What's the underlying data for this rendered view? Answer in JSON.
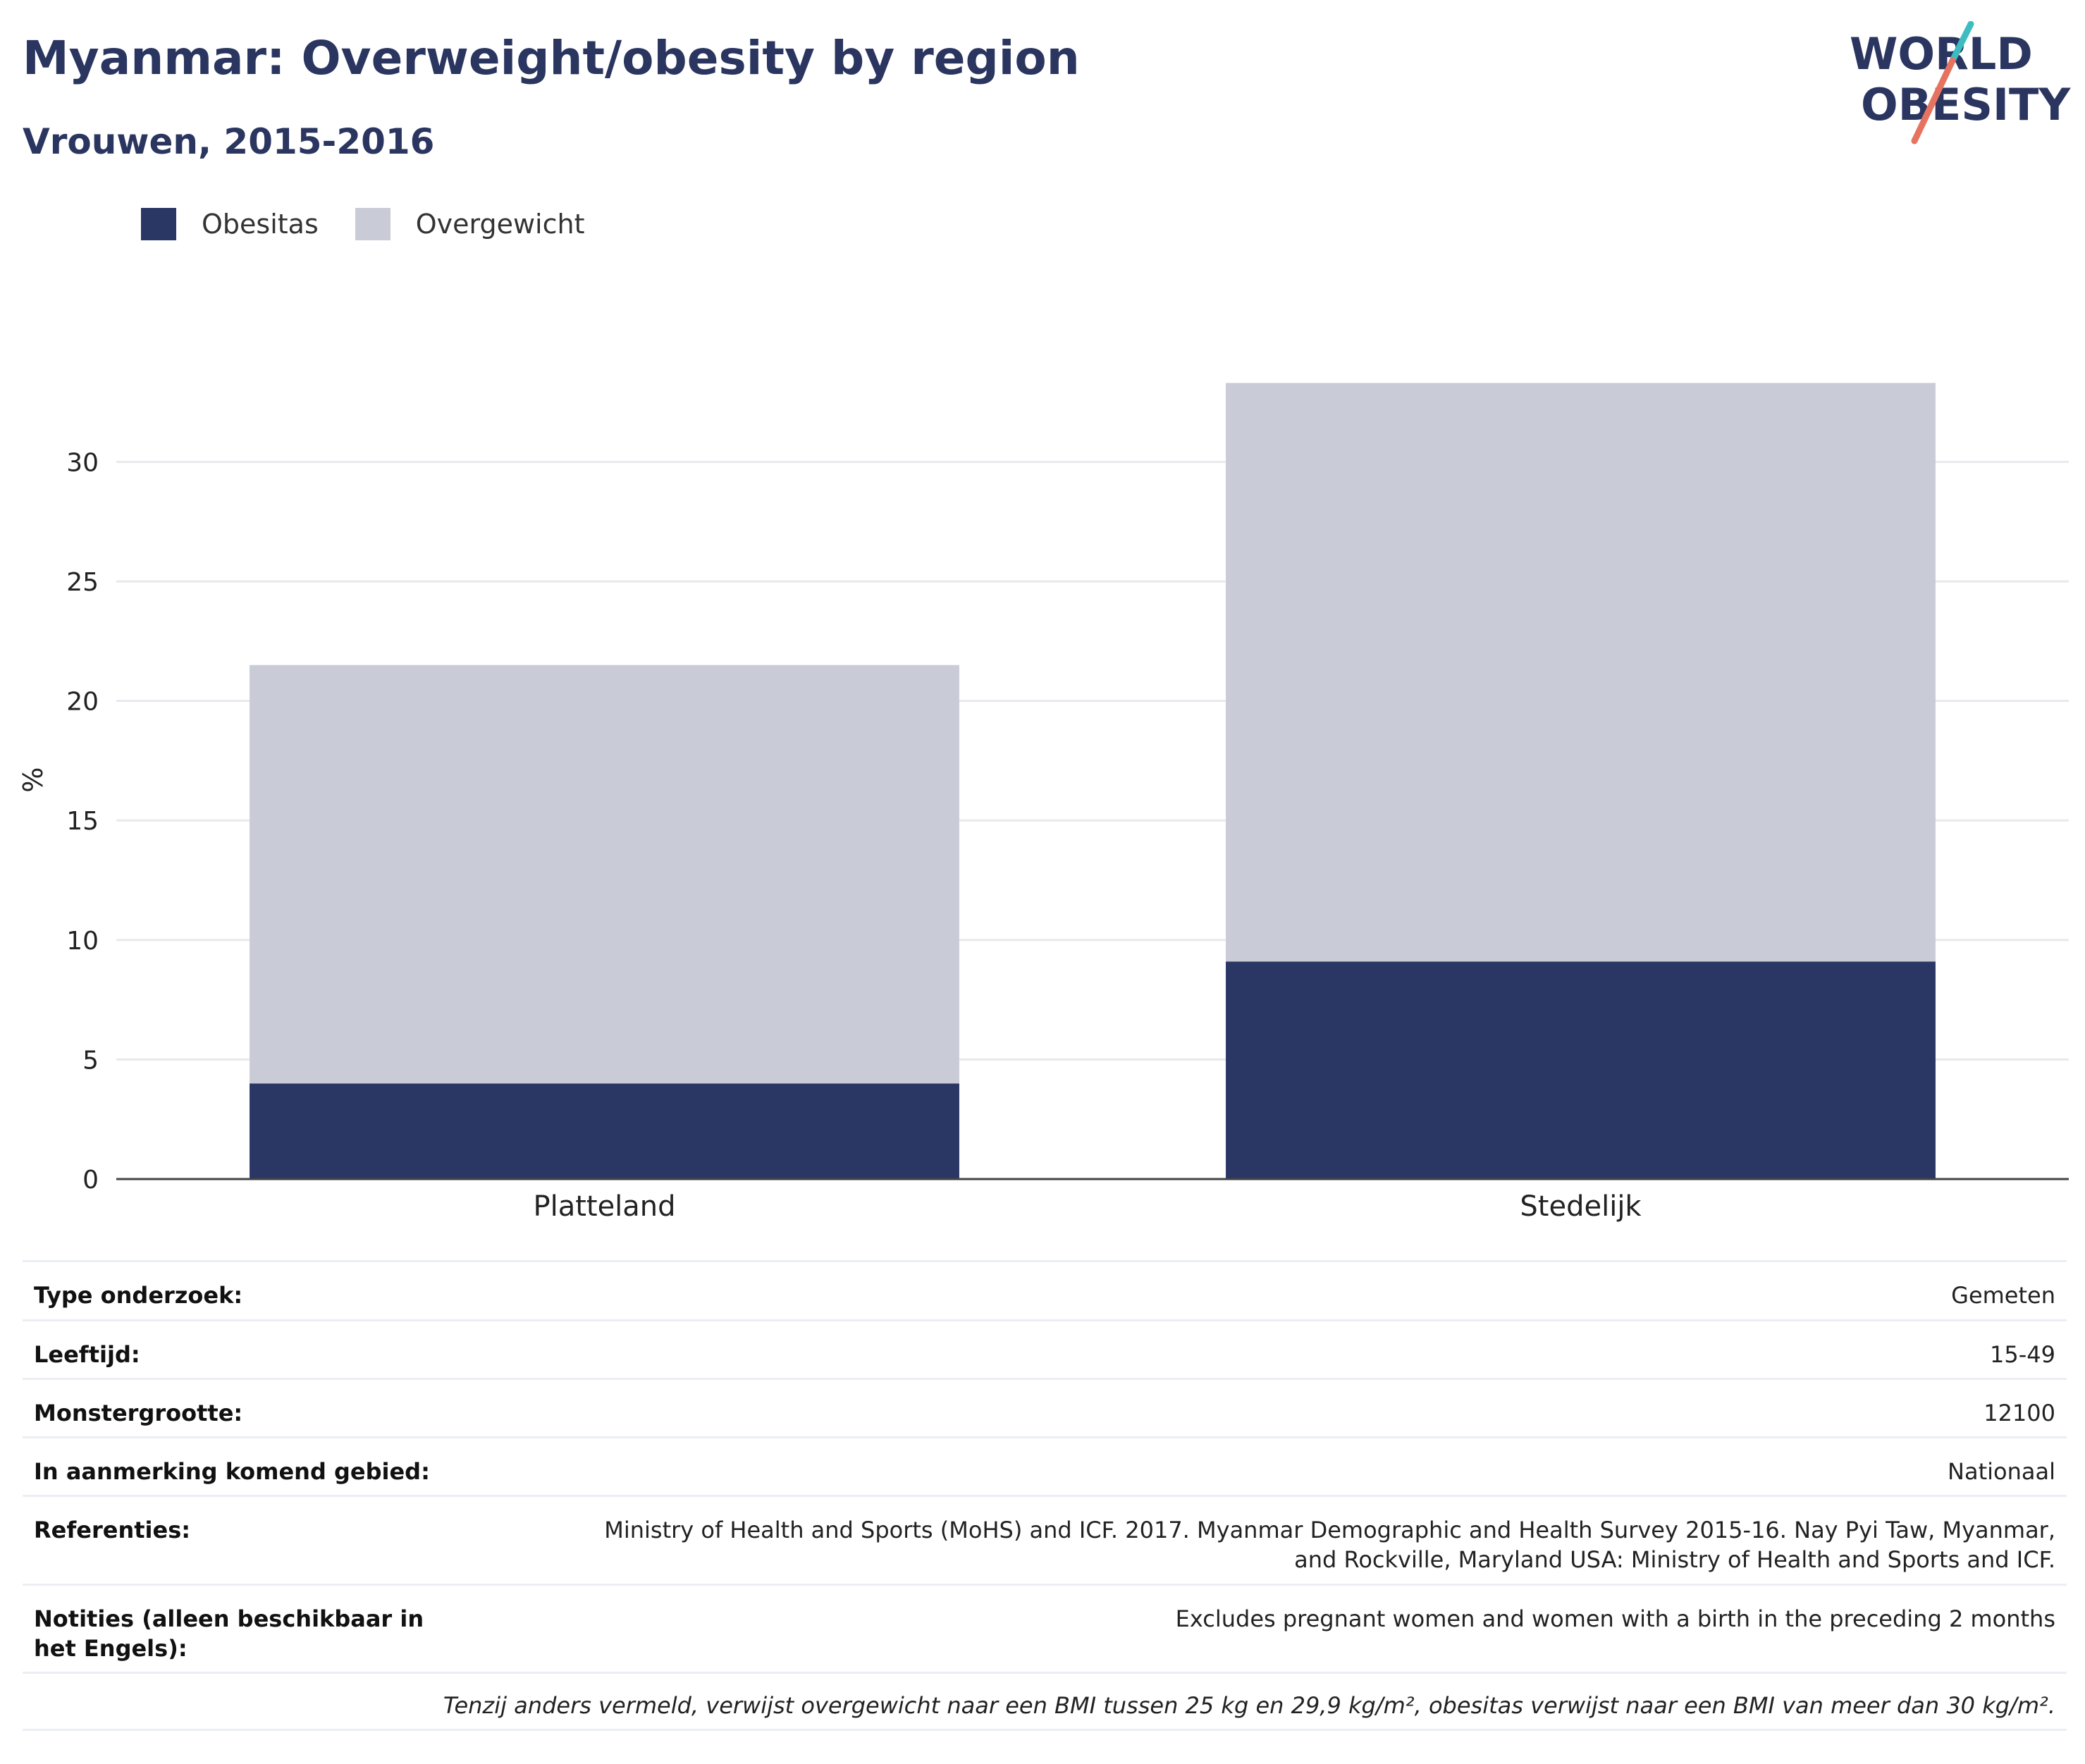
{
  "title": "Myanmar: Overweight/obesity by region",
  "subtitle": "Vrouwen, 2015-2016",
  "logo": {
    "line1": "WORLD",
    "line2": "OBESITY"
  },
  "legend": [
    {
      "label": "Obesitas",
      "color": "#2a3664"
    },
    {
      "label": "Overgewicht",
      "color": "#c9ccd7"
    }
  ],
  "chart_data": {
    "type": "bar",
    "stacked": true,
    "categories": [
      "Platteland",
      "Stedelijk"
    ],
    "series": [
      {
        "name": "Obesitas",
        "values": [
          4.0,
          9.1
        ],
        "color": "#2a3664"
      },
      {
        "name": "Overgewicht",
        "values": [
          17.5,
          24.2
        ],
        "color": "#c9ccd7"
      }
    ],
    "ylabel": "%",
    "ylim": [
      0,
      33.4
    ],
    "yticks": [
      0,
      5,
      10,
      15,
      20,
      25,
      30
    ],
    "grid": true,
    "legend_position": "top-left"
  },
  "info": [
    {
      "label": "Type onderzoek:",
      "value": "Gemeten"
    },
    {
      "label": "Leeftijd:",
      "value": "15-49"
    },
    {
      "label": "Monstergrootte:",
      "value": "12100"
    },
    {
      "label": "In aanmerking komend gebied:",
      "value": "Nationaal"
    },
    {
      "label": "Referenties:",
      "value": "Ministry of Health and Sports (MoHS) and ICF. 2017. Myanmar Demographic and Health Survey 2015-16. Nay Pyi Taw, Myanmar, and Rockville, Maryland USA: Ministry of Health and Sports and ICF."
    },
    {
      "label": "Notities (alleen beschikbaar in het Engels):",
      "value": "Excludes pregnant women and women with a birth in the preceding 2 months"
    }
  ],
  "footnote": "Tenzij anders vermeld, verwijst overgewicht naar een BMI tussen 25 kg en 29,9 kg/m², obesitas verwijst naar een BMI van meer dan 30 kg/m²."
}
